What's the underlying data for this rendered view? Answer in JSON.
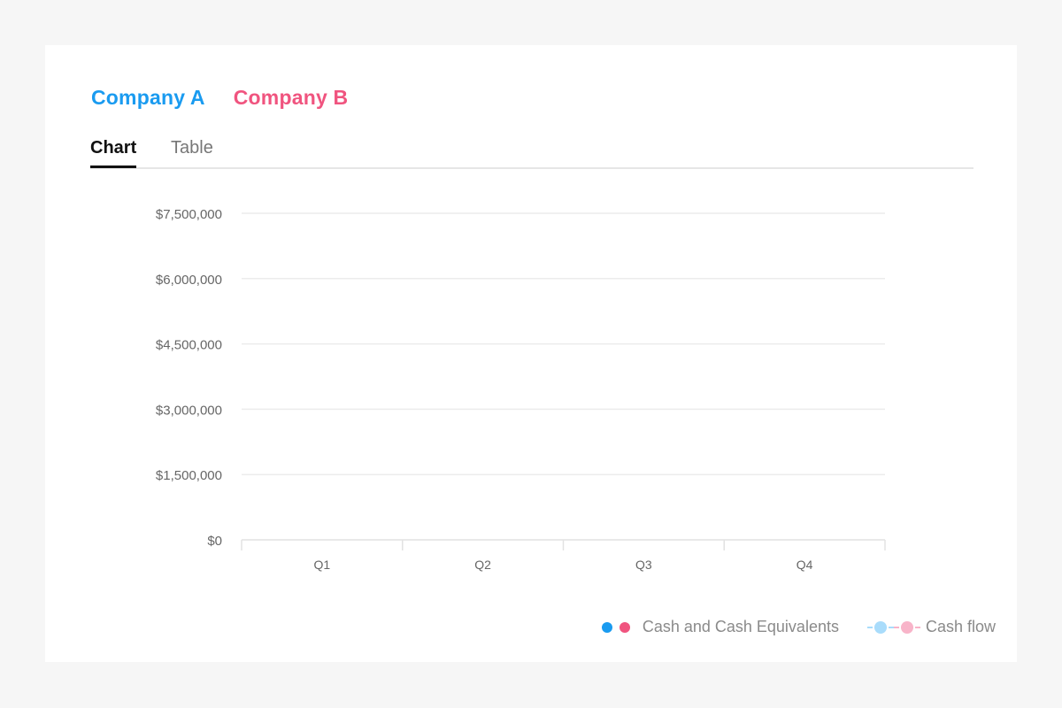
{
  "companies": [
    {
      "label": "Company A",
      "color": "#1a9bf0"
    },
    {
      "label": "Company B",
      "color": "#f0547f"
    }
  ],
  "tabs": [
    {
      "label": "Chart",
      "active": true
    },
    {
      "label": "Table",
      "active": false
    }
  ],
  "chart_data": {
    "type": "bar",
    "categories": [
      "Q1",
      "Q2",
      "Q3",
      "Q4"
    ],
    "y_ticks": [
      "$0",
      "$1,500,000",
      "$3,000,000",
      "$4,500,000",
      "$6,000,000",
      "$7,500,000"
    ],
    "ylim": [
      0,
      7500000
    ],
    "grid": true,
    "legend_position": "bottom-right",
    "series": [
      {
        "name": "Company A",
        "type": "bar",
        "values": [
          0,
          0,
          0,
          0
        ],
        "color": "#1a9bf0"
      },
      {
        "name": "Company B",
        "type": "bar",
        "values": [
          0,
          0,
          0,
          0
        ],
        "color": "#f0547f"
      }
    ]
  },
  "legend": {
    "bars_label": "Cash and Cash Equivalents",
    "lines_label": "Cash flow",
    "bar_colors": [
      "#1a9bf0",
      "#f0547f"
    ],
    "line_colors": [
      "#a9dcfb",
      "#f8b4c9"
    ]
  }
}
